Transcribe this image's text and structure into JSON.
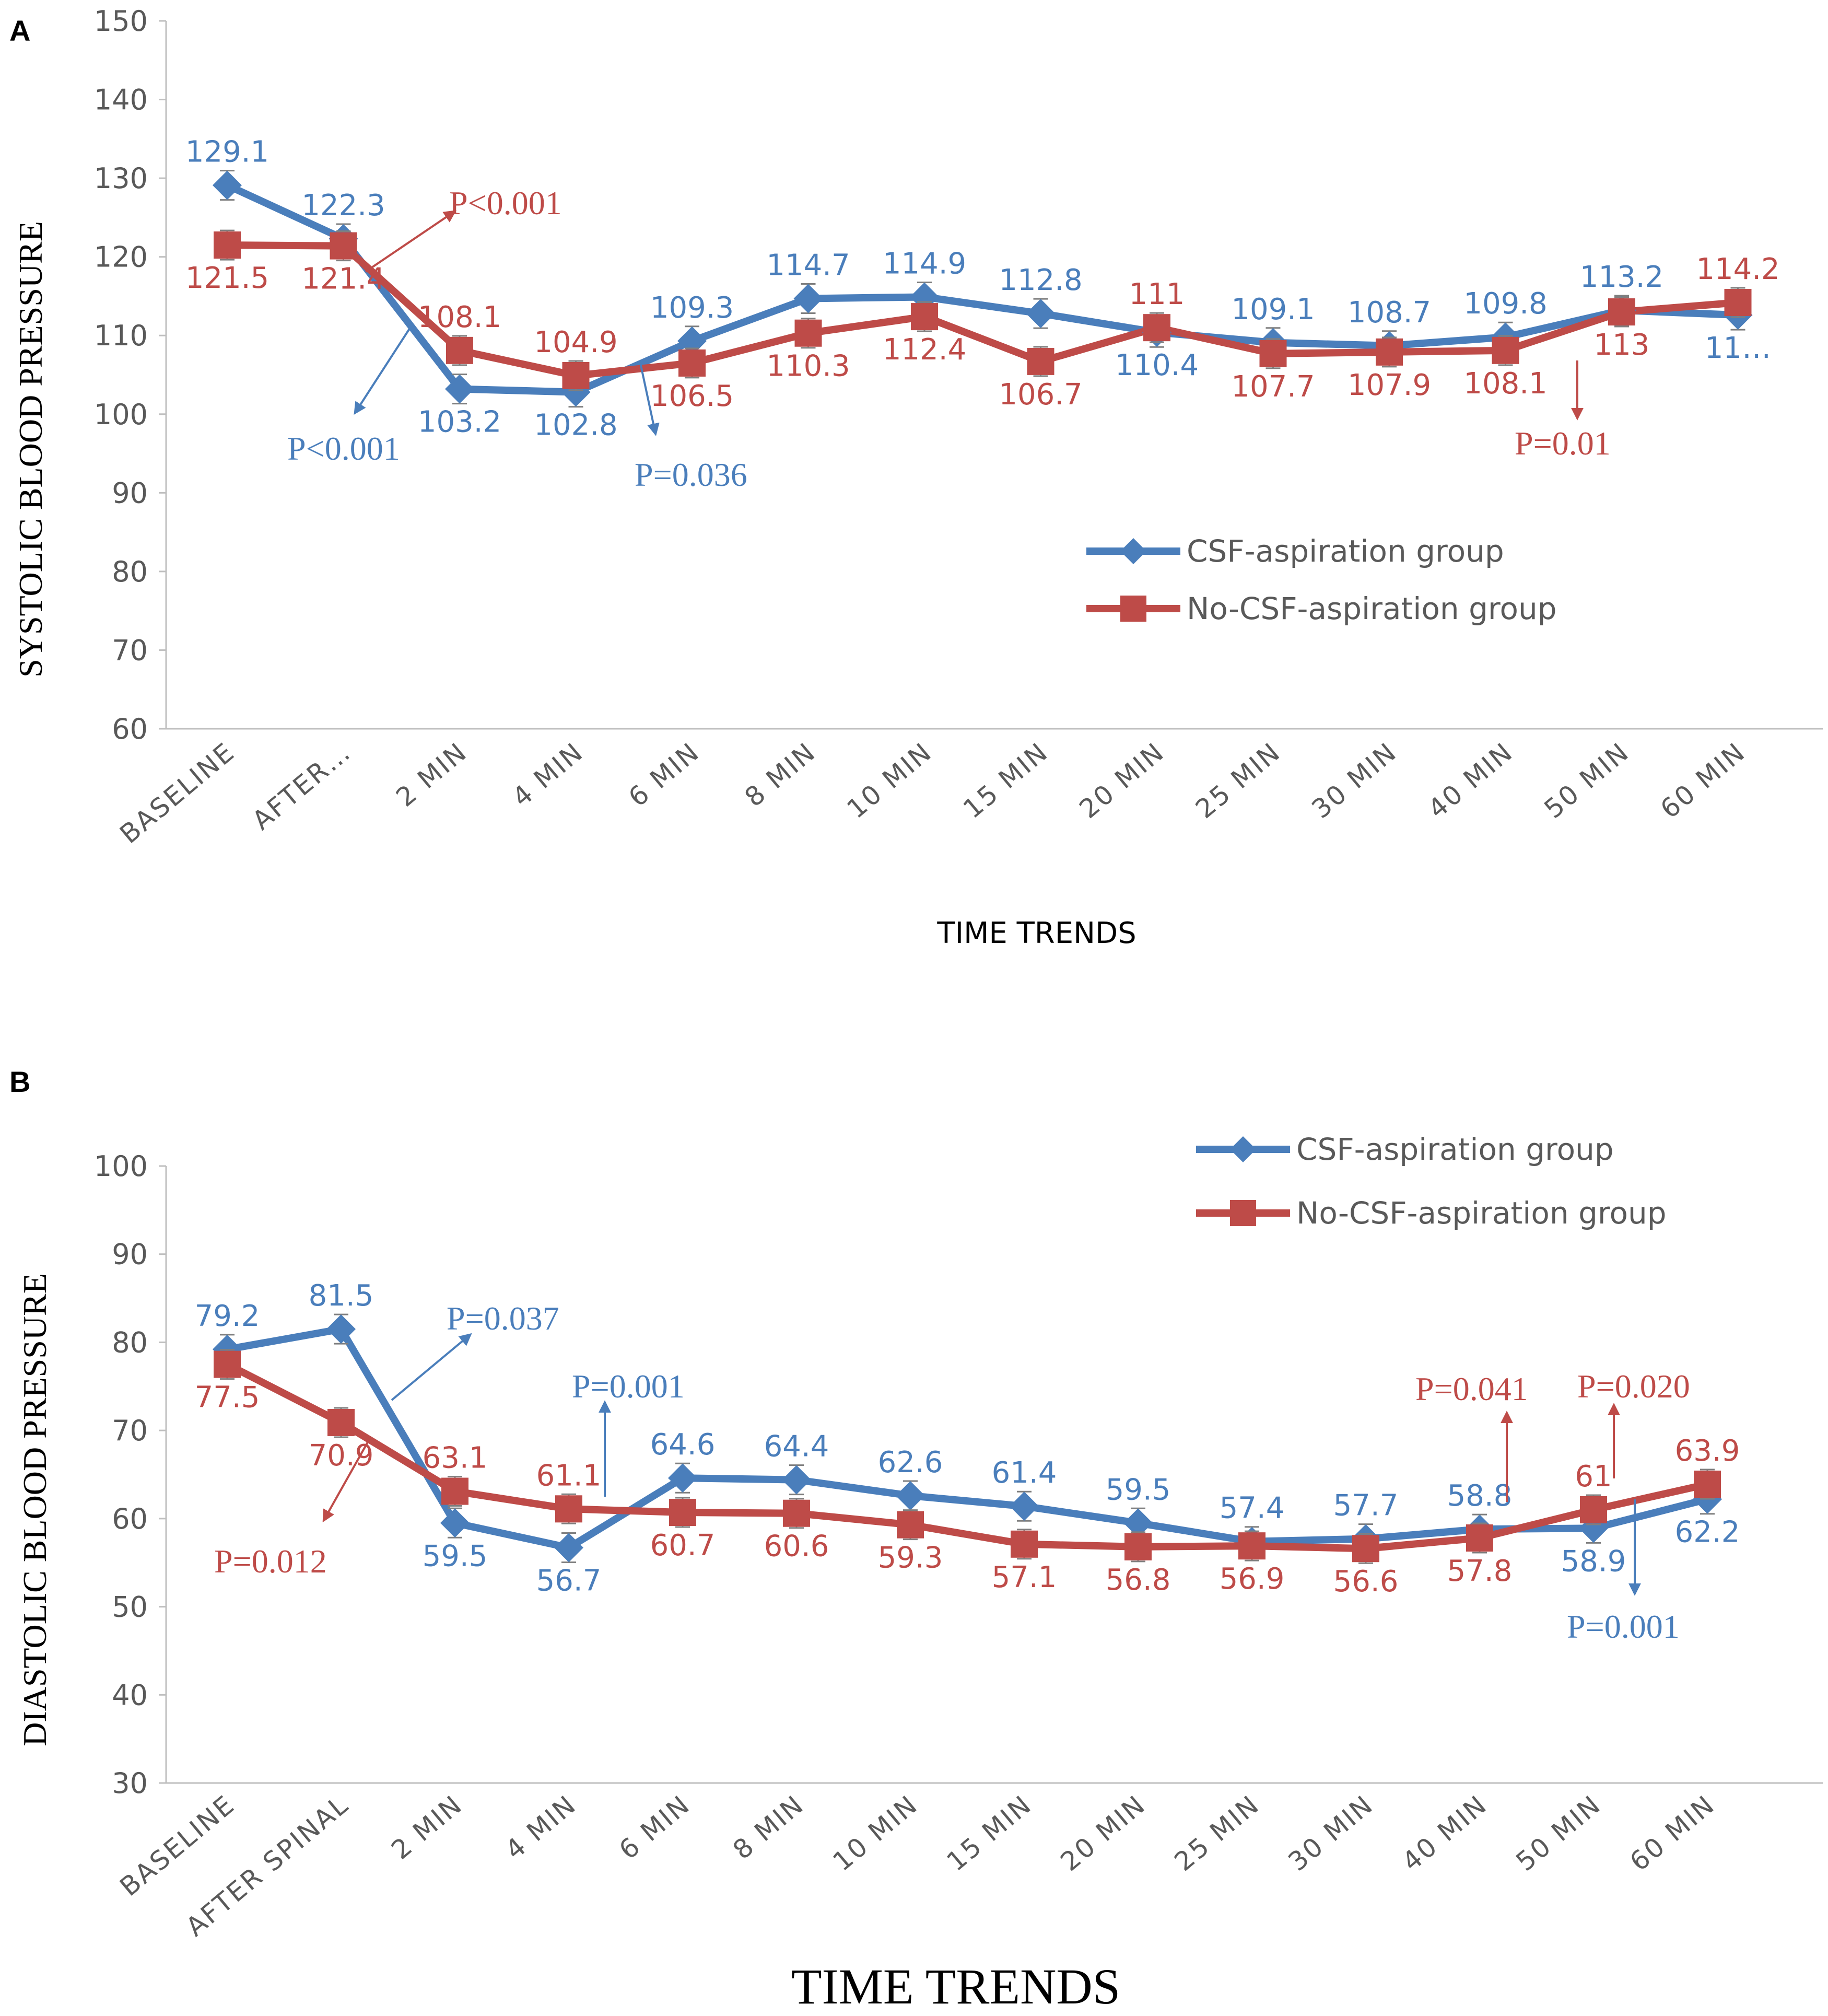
{
  "colors": {
    "csf": "#4A7EBB",
    "nocsf": "#BE4B48",
    "axis": "#bfbfbf",
    "tick": "#595959"
  },
  "chart_data": [
    {
      "type": "line",
      "panel": "A",
      "ylabel": "SYSTOLIC BLOOD PRESSURE",
      "xlabel": "TIME TRENDS",
      "ylim": [
        60,
        150
      ],
      "yticks": [
        "60",
        "70",
        "80",
        "90",
        "100",
        "110",
        "120",
        "130",
        "140",
        "150"
      ],
      "categories": [
        "BASELINE",
        "AFTER…",
        "2 MIN",
        "4 MIN",
        "6 MIN",
        "8 MIN",
        "10 MIN",
        "15 MIN",
        "20 MIN",
        "25 MIN",
        "30 MIN",
        "40 MIN",
        "50 MIN",
        "60 MIN"
      ],
      "series": [
        {
          "name": "CSF-aspiration group",
          "color": "#4A7EBB",
          "marker": "diamond",
          "values": [
            129.1,
            122.3,
            103.2,
            102.8,
            109.3,
            114.7,
            114.9,
            112.8,
            110.4,
            109.1,
            108.7,
            109.8,
            113.2,
            112.6
          ],
          "labels": [
            "129.1",
            "122.3",
            "103.2",
            "102.8",
            "109.3",
            "114.7",
            "114.9",
            "112.8",
            "110.4",
            "109.1",
            "108.7",
            "109.8",
            "113.2",
            "11…"
          ]
        },
        {
          "name": "No-CSF-aspiration group",
          "color": "#BE4B48",
          "marker": "square",
          "values": [
            121.5,
            121.4,
            108.1,
            104.9,
            106.5,
            110.3,
            112.4,
            106.7,
            111,
            107.7,
            107.9,
            108.1,
            113,
            114.2
          ],
          "labels": [
            "121.5",
            "121.4",
            "108.1",
            "104.9",
            "106.5",
            "110.3",
            "112.4",
            "106.7",
            "111",
            "107.7",
            "107.9",
            "108.1",
            "113",
            "114.2"
          ]
        }
      ],
      "legend": [
        "CSF-aspiration group",
        "No-CSF-aspiration group"
      ],
      "annotations": [
        {
          "text": "P<0.001",
          "color": "#BE4B48"
        },
        {
          "text": "P<0.001",
          "color": "#4A7EBB"
        },
        {
          "text": "P=0.036",
          "color": "#4A7EBB"
        },
        {
          "text": "P=0.01",
          "color": "#BE4B48"
        }
      ]
    },
    {
      "type": "line",
      "panel": "B",
      "ylabel": "DIASTOLIC BLOOD PRESSURE",
      "xlabel": "TIME TRENDS",
      "ylim": [
        30,
        100
      ],
      "yticks": [
        "30",
        "40",
        "50",
        "60",
        "70",
        "80",
        "90",
        "100"
      ],
      "categories": [
        "BASELINE",
        "AFTER SPINAL",
        "2 MIN",
        "4 MIN",
        "6 MIN",
        "8 MIN",
        "10 MIN",
        "15 MIN",
        "20 MIN",
        "25 MIN",
        "30 MIN",
        "40 MIN",
        "50 MIN",
        "60 MIN"
      ],
      "series": [
        {
          "name": "CSF-aspiration group",
          "color": "#4A7EBB",
          "marker": "diamond",
          "values": [
            79.2,
            81.5,
            59.5,
            56.7,
            64.6,
            64.4,
            62.6,
            61.4,
            59.5,
            57.4,
            57.7,
            58.8,
            58.9,
            62.2
          ],
          "labels": [
            "79.2",
            "81.5",
            "59.5",
            "56.7",
            "64.6",
            "64.4",
            "62.6",
            "61.4",
            "59.5",
            "57.4",
            "57.7",
            "58.8",
            "58.9",
            "62.2"
          ]
        },
        {
          "name": "No-CSF-aspiration group",
          "color": "#BE4B48",
          "marker": "square",
          "values": [
            77.5,
            70.9,
            63.1,
            61.1,
            60.7,
            60.6,
            59.3,
            57.1,
            56.8,
            56.9,
            56.6,
            57.8,
            61,
            63.9
          ],
          "labels": [
            "77.5",
            "70.9",
            "63.1",
            "61.1",
            "60.7",
            "60.6",
            "59.3",
            "57.1",
            "56.8",
            "56.9",
            "56.6",
            "57.8",
            "61",
            "63.9"
          ]
        }
      ],
      "legend": [
        "CSF-aspiration group",
        "No-CSF-aspiration group"
      ],
      "annotations": [
        {
          "text": "P=0.037",
          "color": "#4A7EBB"
        },
        {
          "text": "P=0.012",
          "color": "#BE4B48"
        },
        {
          "text": "P=0.001",
          "color": "#4A7EBB"
        },
        {
          "text": "P=0.041",
          "color": "#BE4B48"
        },
        {
          "text": "P=0.020",
          "color": "#BE4B48"
        },
        {
          "text": "P=0.001",
          "color": "#4A7EBB"
        }
      ]
    }
  ]
}
